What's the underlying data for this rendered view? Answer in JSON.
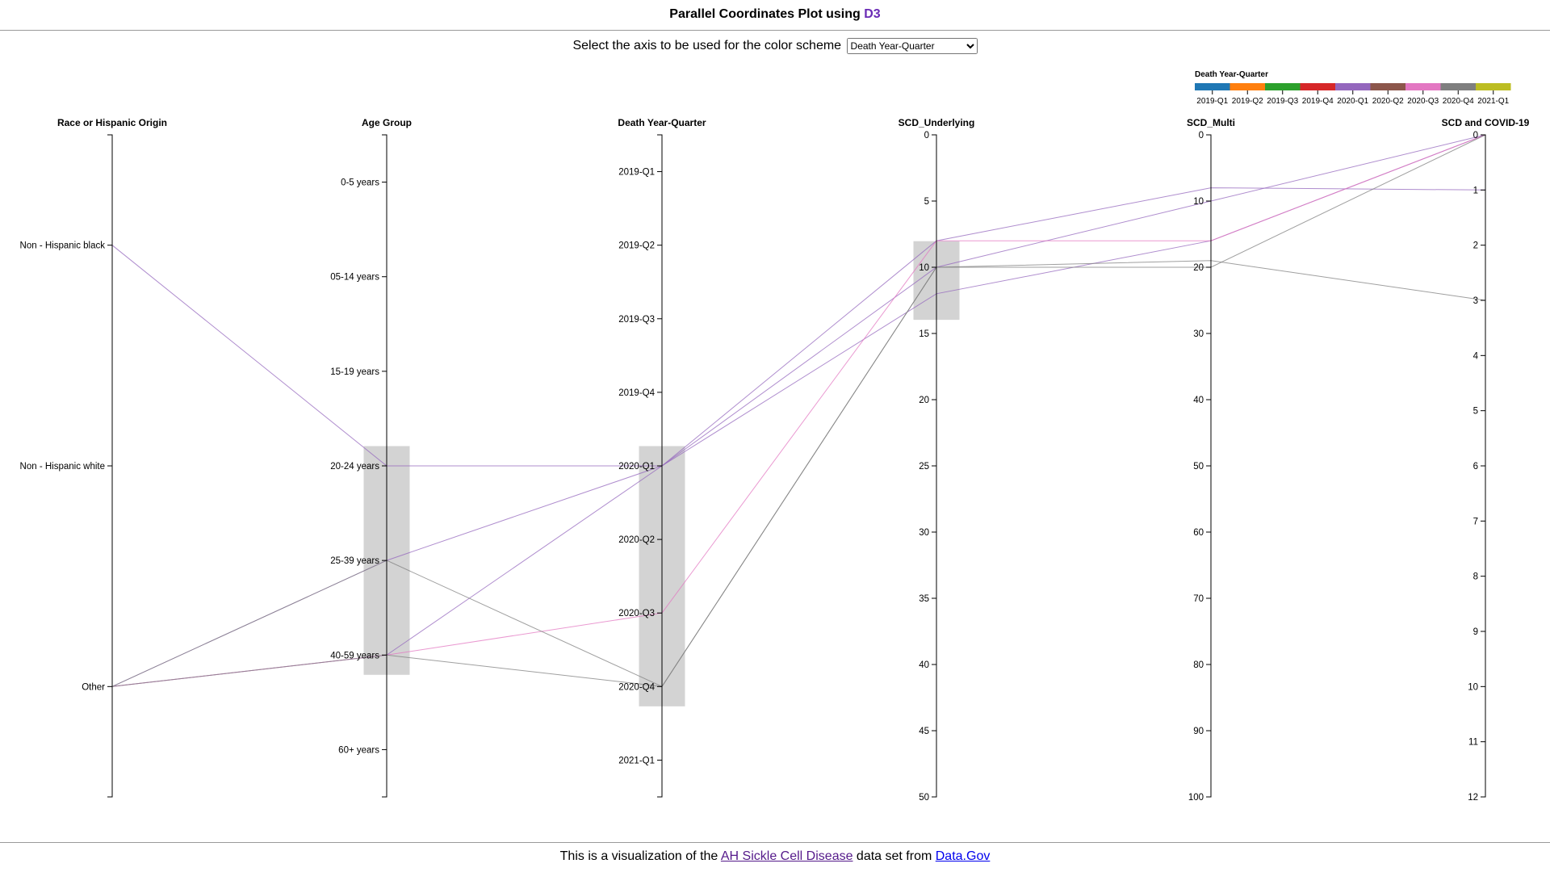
{
  "page": {
    "title_prefix": "Parallel Coordinates Plot using ",
    "title_link": "D3",
    "scheme_label": "Select the axis to be used for the color scheme",
    "scheme_selected": "Death Year-Quarter",
    "footer_prefix": "This is a visualization of the ",
    "footer_dataset_link": "AH Sickle Cell Disease",
    "footer_middle": " data set from ",
    "footer_source_link": "Data.Gov"
  },
  "chart_data": {
    "type": "parallel-coordinates",
    "color_axis": "Death Year-Quarter",
    "legend": {
      "title": "Death Year-Quarter",
      "placement": "top-right",
      "entries": [
        {
          "label": "2019-Q1",
          "color": "#1f77b4"
        },
        {
          "label": "2019-Q2",
          "color": "#ff7f0e"
        },
        {
          "label": "2019-Q3",
          "color": "#2ca02c"
        },
        {
          "label": "2019-Q4",
          "color": "#d62728"
        },
        {
          "label": "2020-Q1",
          "color": "#9467bd"
        },
        {
          "label": "2020-Q2",
          "color": "#8c564b"
        },
        {
          "label": "2020-Q3",
          "color": "#e377c2"
        },
        {
          "label": "2020-Q4",
          "color": "#7f7f7f"
        },
        {
          "label": "2021-Q1",
          "color": "#bcbd22"
        }
      ]
    },
    "axes": [
      {
        "name": "Race or Hispanic Origin",
        "type": "categorical",
        "ticks": [
          "Non - Hispanic black",
          "Non - Hispanic white",
          "Other"
        ],
        "domain_pad": 0.5
      },
      {
        "name": "Age Group",
        "type": "categorical",
        "ticks": [
          "0-5 years",
          "05-14 years",
          "15-19 years",
          "20-24 years",
          "25-39 years",
          "40-59 years",
          "60+ years"
        ],
        "domain_pad": 0.5
      },
      {
        "name": "Death Year-Quarter",
        "type": "categorical",
        "ticks": [
          "2019-Q1",
          "2019-Q2",
          "2019-Q3",
          "2019-Q4",
          "2020-Q1",
          "2020-Q2",
          "2020-Q3",
          "2020-Q4",
          "2021-Q1"
        ],
        "domain_pad": 0.5
      },
      {
        "name": "SCD_Underlying",
        "type": "linear",
        "domain": [
          0,
          50
        ],
        "ticks": [
          0,
          5,
          10,
          15,
          20,
          25,
          30,
          35,
          40,
          45,
          50
        ]
      },
      {
        "name": "SCD_Multi",
        "type": "linear",
        "domain": [
          0,
          100
        ],
        "ticks": [
          0,
          10,
          20,
          30,
          40,
          50,
          60,
          70,
          80,
          90,
          100
        ]
      },
      {
        "name": "SCD and COVID-19",
        "type": "linear",
        "domain": [
          0,
          12
        ],
        "ticks": [
          0,
          1,
          2,
          3,
          4,
          5,
          6,
          7,
          8,
          9,
          10,
          11,
          12
        ]
      }
    ],
    "brushes": [
      {
        "axis": "Age Group",
        "from": "20-24 years",
        "to": "40-59 years"
      },
      {
        "axis": "Death Year-Quarter",
        "from": "2020-Q1",
        "to": "2020-Q4"
      },
      {
        "axis": "SCD_Underlying",
        "from": 8,
        "to": 14
      }
    ],
    "records": [
      {
        "Race or Hispanic Origin": "Non - Hispanic black",
        "Age Group": "20-24 years",
        "Death Year-Quarter": "2020-Q1",
        "SCD_Underlying": 10,
        "SCD_Multi": 10,
        "SCD and COVID-19": 0
      },
      {
        "Race or Hispanic Origin": "Other",
        "Age Group": "25-39 years",
        "Death Year-Quarter": "2020-Q1",
        "SCD_Underlying": 8,
        "SCD_Multi": 8,
        "SCD and COVID-19": 1
      },
      {
        "Race or Hispanic Origin": "Other",
        "Age Group": "40-59 years",
        "Death Year-Quarter": "2020-Q1",
        "SCD_Underlying": 12,
        "SCD_Multi": 16,
        "SCD and COVID-19": 0
      },
      {
        "Race or Hispanic Origin": "Other",
        "Age Group": "40-59 years",
        "Death Year-Quarter": "2020-Q3",
        "SCD_Underlying": 8,
        "SCD_Multi": 16,
        "SCD and COVID-19": 0
      },
      {
        "Race or Hispanic Origin": "Other",
        "Age Group": "25-39 years",
        "Death Year-Quarter": "2020-Q4",
        "SCD_Underlying": 10,
        "SCD_Multi": 20,
        "SCD and COVID-19": 0
      },
      {
        "Race or Hispanic Origin": "Other",
        "Age Group": "40-59 years",
        "Death Year-Quarter": "2020-Q4",
        "SCD_Underlying": 10,
        "SCD_Multi": 19,
        "SCD and COVID-19": 3
      }
    ]
  }
}
